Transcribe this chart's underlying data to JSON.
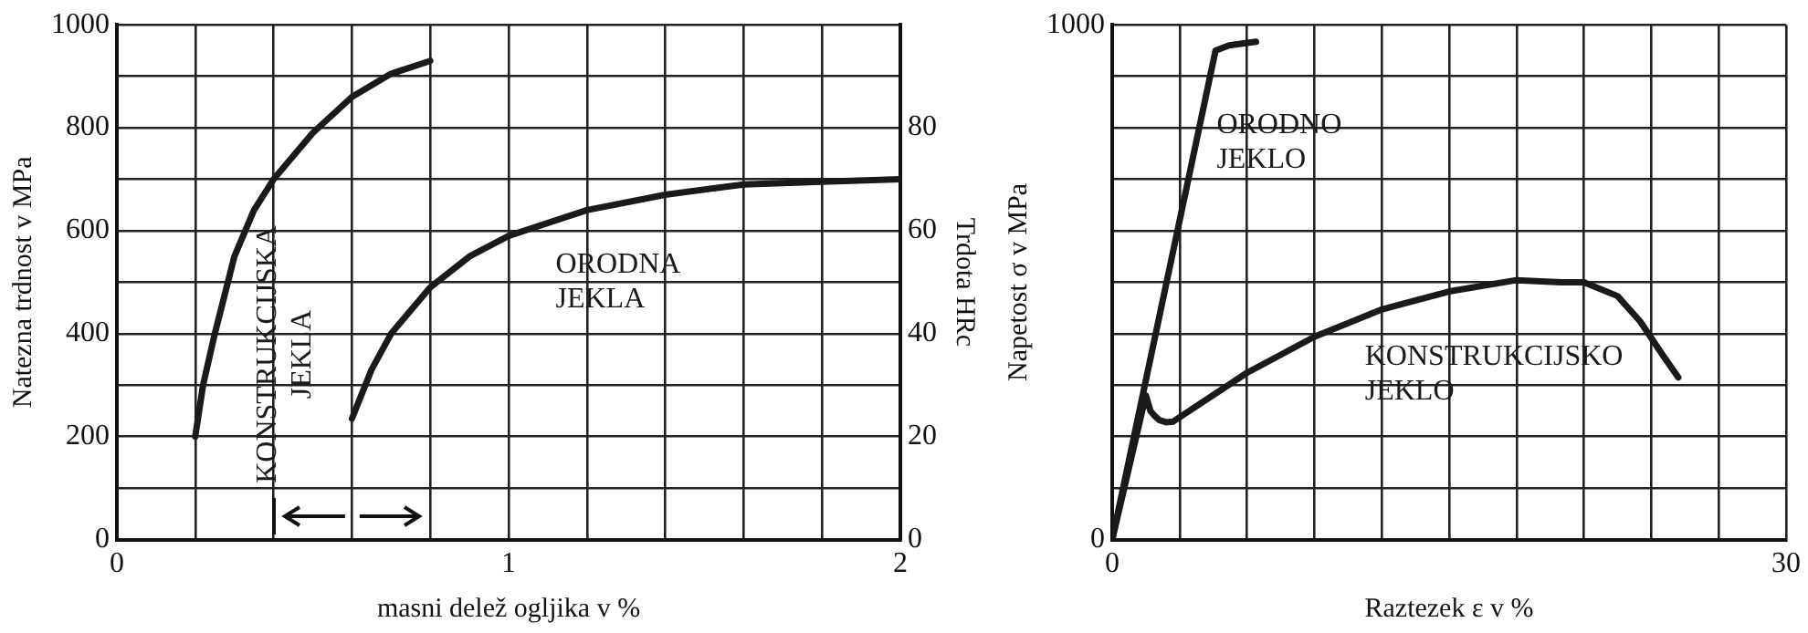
{
  "chart_data": [
    {
      "type": "line",
      "xlabel": "masni delež ogljika v %",
      "ylabel": "Natezna trdnost v MPa",
      "y2label": "Trdota HRc",
      "xlim": [
        0,
        2
      ],
      "xticks": [
        0,
        {
          "value": 0.2,
          "label": null
        },
        {
          "value": 0.4,
          "label": null
        },
        {
          "value": 0.6,
          "label": null
        },
        {
          "value": 0.8,
          "label": null
        },
        1,
        {
          "value": 1.2,
          "label": null
        },
        {
          "value": 1.4,
          "label": null
        },
        {
          "value": 1.6,
          "label": null
        },
        {
          "value": 1.8,
          "label": null
        },
        2
      ],
      "ylim": [
        0,
        1000
      ],
      "yticks": [
        0,
        {
          "value": 100,
          "label": null
        },
        200,
        {
          "value": 300,
          "label": null
        },
        400,
        {
          "value": 500,
          "label": null
        },
        600,
        {
          "value": 700,
          "label": null
        },
        800,
        {
          "value": 900,
          "label": null
        },
        1000
      ],
      "y2lim": [
        0,
        100
      ],
      "y2ticks": [
        0,
        20,
        40,
        60,
        80
      ],
      "grid": true,
      "legend": false,
      "marker": "none",
      "line_style": "solid",
      "series": [
        {
          "name": "KONSTRUKCIJSKA JEKLA",
          "color": "#1a1a1a",
          "x": [
            0.2,
            0.22,
            0.25,
            0.3,
            0.35,
            0.4,
            0.5,
            0.6,
            0.7,
            0.8
          ],
          "values": [
            200,
            300,
            400,
            550,
            640,
            700,
            790,
            860,
            905,
            930
          ]
        },
        {
          "name": "ORODNA JEKLA",
          "color": "#1a1a1a",
          "axis": "y2",
          "x": [
            0.6,
            0.65,
            0.7,
            0.8,
            0.9,
            1.0,
            1.2,
            1.4,
            1.6,
            1.8,
            2.0
          ],
          "values": [
            23.5,
            33,
            40,
            49,
            55,
            59,
            64,
            67,
            69,
            69.5,
            70
          ]
        }
      ]
    },
    {
      "type": "line",
      "xlabel": "Raztezek ε v %",
      "ylabel": "Napetost σ v MPa",
      "xlim": [
        0,
        30
      ],
      "xticks": [
        0,
        {
          "value": 3,
          "label": null
        },
        {
          "value": 6,
          "label": null
        },
        {
          "value": 9,
          "label": null
        },
        {
          "value": 12,
          "label": null
        },
        {
          "value": 15,
          "label": null
        },
        {
          "value": 18,
          "label": null
        },
        {
          "value": 21,
          "label": null
        },
        {
          "value": 24,
          "label": null
        },
        {
          "value": 27,
          "label": null
        },
        30
      ],
      "ylim": [
        0,
        1000
      ],
      "yticks": [
        0,
        {
          "value": 100,
          "label": null
        },
        {
          "value": 200,
          "label": null
        },
        {
          "value": 300,
          "label": null
        },
        {
          "value": 400,
          "label": null
        },
        {
          "value": 500,
          "label": null
        },
        {
          "value": 600,
          "label": null
        },
        {
          "value": 700,
          "label": null
        },
        {
          "value": 800,
          "label": null
        },
        {
          "value": 900,
          "label": null
        },
        1000
      ],
      "grid": true,
      "legend": false,
      "marker": "none",
      "line_style": "solid",
      "series": [
        {
          "name": "ORODNO JEKLO",
          "color": "#1a1a1a",
          "x": [
            0,
            4.6,
            5.2,
            6.4
          ],
          "values": [
            0,
            950,
            960,
            967
          ]
        },
        {
          "name": "KONSTRUKCIJSKO JEKLO",
          "color": "#1a1a1a",
          "x": [
            0,
            1.5,
            1.7,
            1.9,
            2.1,
            2.4,
            2.7,
            6,
            9,
            12,
            15,
            18,
            20,
            21,
            22.5,
            23.5,
            24.5,
            25.2
          ],
          "values": [
            0,
            280,
            250,
            240,
            232,
            228,
            229,
            324,
            394,
            447,
            482,
            504,
            500,
            500,
            473,
            424,
            359,
            315
          ]
        }
      ]
    }
  ]
}
